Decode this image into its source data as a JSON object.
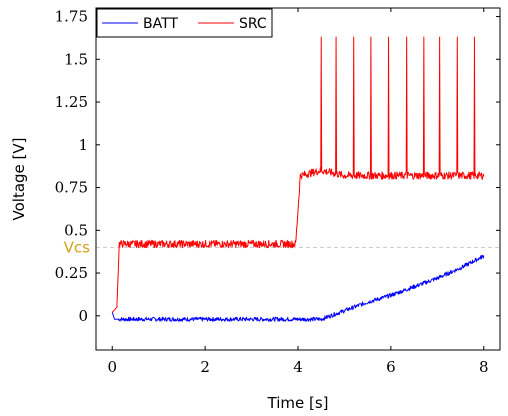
{
  "chart_data": {
    "type": "line",
    "xlabel": "Time [s]",
    "ylabel": "Voltage [V]",
    "xlim": [
      -0.35,
      8.35
    ],
    "ylim": [
      -0.2,
      1.8
    ],
    "x_ticks": [
      0,
      2,
      4,
      6,
      8
    ],
    "x_tick_labels": [
      "0",
      "2",
      "4",
      "6",
      "8"
    ],
    "y_ticks": [
      0,
      0.25,
      0.5,
      0.75,
      1,
      1.25,
      1.5,
      1.75
    ],
    "y_tick_labels": [
      "0",
      "0.25",
      "0.5",
      "0.75",
      "1",
      "1.25",
      "1.5",
      "1.75"
    ],
    "grid": false,
    "legend_position": "top-left",
    "reference_line": {
      "label": "Vcs",
      "y": 0.4,
      "color": "#d4a017",
      "style": "dashed"
    },
    "series": [
      {
        "name": "BATT",
        "color": "#0000ff",
        "x": [
          0,
          0.05,
          0.1,
          1,
          2,
          3,
          4,
          4.5,
          5,
          5.5,
          6,
          6.5,
          7,
          7.5,
          8
        ],
        "y": [
          0.02,
          -0.02,
          -0.02,
          -0.02,
          -0.02,
          -0.02,
          -0.02,
          -0.02,
          0.03,
          0.08,
          0.12,
          0.17,
          0.22,
          0.28,
          0.35
        ]
      },
      {
        "name": "SRC",
        "color": "#ff0000",
        "x": [
          0,
          0.1,
          0.15,
          1,
          2,
          3,
          3.95,
          4.05,
          4.5,
          5,
          6,
          7,
          8
        ],
        "y": [
          0.02,
          0.05,
          0.42,
          0.42,
          0.42,
          0.42,
          0.42,
          0.82,
          0.85,
          0.82,
          0.82,
          0.82,
          0.82
        ],
        "spikes": {
          "x": [
            4.5,
            4.82,
            5.2,
            5.57,
            5.95,
            6.34,
            6.71,
            7.05,
            7.43,
            7.8
          ],
          "y": 1.63
        }
      }
    ]
  }
}
